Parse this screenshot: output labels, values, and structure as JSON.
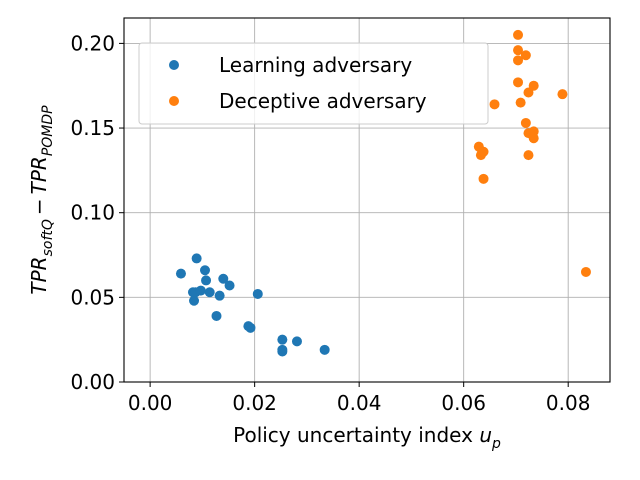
{
  "chart_data": {
    "type": "scatter",
    "title": "",
    "xlabel": "Policy uncertainty index",
    "xlabel_math": {
      "base": "u",
      "sub": "p"
    },
    "ylabel_math": {
      "base1": "TPR",
      "sub1": "softQ",
      "op": "−",
      "base2": "TPR",
      "sub2": "POMDP"
    },
    "xlim": [
      -0.005,
      0.088
    ],
    "ylim": [
      0.0,
      0.215
    ],
    "x_ticks": [
      0.0,
      0.02,
      0.04,
      0.06,
      0.08
    ],
    "x_tick_labels": [
      "0.00",
      "0.02",
      "0.04",
      "0.06",
      "0.08"
    ],
    "y_ticks": [
      0.0,
      0.05,
      0.1,
      0.15,
      0.2
    ],
    "y_tick_labels": [
      "0.00",
      "0.05",
      "0.10",
      "0.15",
      "0.20"
    ],
    "grid": true,
    "legend_position": "top-left",
    "series": [
      {
        "name": "Learning adversary",
        "color": "#1f77b4",
        "points": [
          [
            0.0059,
            0.064
          ],
          [
            0.0082,
            0.053
          ],
          [
            0.0084,
            0.048
          ],
          [
            0.0087,
            0.053
          ],
          [
            0.0089,
            0.073
          ],
          [
            0.0097,
            0.054
          ],
          [
            0.0105,
            0.066
          ],
          [
            0.0107,
            0.06
          ],
          [
            0.0114,
            0.053
          ],
          [
            0.0127,
            0.039
          ],
          [
            0.0133,
            0.051
          ],
          [
            0.014,
            0.061
          ],
          [
            0.0152,
            0.057
          ],
          [
            0.0188,
            0.033
          ],
          [
            0.0192,
            0.032
          ],
          [
            0.0206,
            0.052
          ],
          [
            0.0253,
            0.025
          ],
          [
            0.0253,
            0.019
          ],
          [
            0.0253,
            0.018
          ],
          [
            0.0281,
            0.024
          ],
          [
            0.0334,
            0.019
          ]
        ]
      },
      {
        "name": "Deceptive adversary",
        "color": "#ff7f0e",
        "points": [
          [
            0.0629,
            0.139
          ],
          [
            0.0633,
            0.134
          ],
          [
            0.0638,
            0.136
          ],
          [
            0.0638,
            0.12
          ],
          [
            0.0659,
            0.164
          ],
          [
            0.0704,
            0.205
          ],
          [
            0.0704,
            0.196
          ],
          [
            0.0704,
            0.19
          ],
          [
            0.0704,
            0.177
          ],
          [
            0.0709,
            0.165
          ],
          [
            0.0719,
            0.193
          ],
          [
            0.0719,
            0.153
          ],
          [
            0.0724,
            0.171
          ],
          [
            0.0724,
            0.147
          ],
          [
            0.0724,
            0.134
          ],
          [
            0.0734,
            0.175
          ],
          [
            0.0734,
            0.148
          ],
          [
            0.0734,
            0.144
          ],
          [
            0.0789,
            0.17
          ],
          [
            0.0834,
            0.065
          ]
        ]
      }
    ]
  }
}
